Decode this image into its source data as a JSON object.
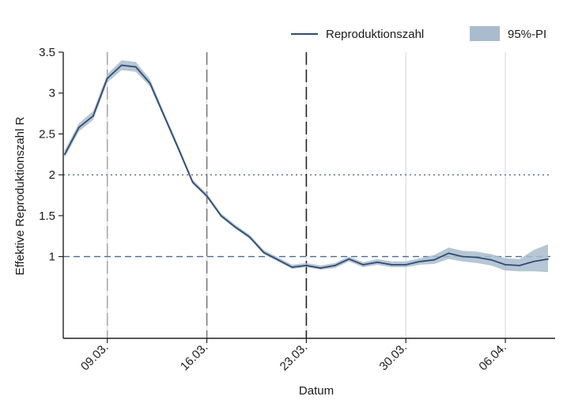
{
  "chart_data": {
    "type": "line",
    "xlabel": "Datum",
    "ylabel": "Effektive Reproduktionszahl R",
    "ylim": [
      0.0,
      3.5
    ],
    "y_ticks": [
      1,
      1.5,
      2,
      2.5,
      3,
      3.5
    ],
    "y_tick_labels": [
      "1",
      "1.5",
      "2",
      "2.5",
      "3",
      "3.5"
    ],
    "x_ticks": [
      "09.03.",
      "16.03.",
      "23.03.",
      "30.03.",
      "06.04."
    ],
    "x_tick_day_index": [
      9,
      16,
      23,
      30,
      37
    ],
    "x_start_day": 5.9,
    "x_end_day": 40.5,
    "series": [
      {
        "name": "Reproduktionszahl",
        "color": "#2f4b72",
        "band_color": "#a9bccd",
        "band_label": "95%-PI",
        "days": [
          6,
          7,
          8,
          9,
          10,
          11,
          12,
          13,
          14,
          15,
          16,
          17,
          18,
          19,
          20,
          21,
          22,
          23,
          24,
          25,
          26,
          27,
          28,
          29,
          30,
          31,
          32,
          33,
          34,
          35,
          36,
          37,
          38,
          39,
          40
        ],
        "values": [
          2.25,
          2.58,
          2.72,
          3.18,
          3.34,
          3.32,
          3.12,
          2.72,
          2.32,
          1.91,
          1.74,
          1.5,
          1.36,
          1.24,
          1.05,
          0.96,
          0.87,
          0.89,
          0.86,
          0.89,
          0.97,
          0.9,
          0.93,
          0.9,
          0.9,
          0.94,
          0.96,
          1.04,
          1.0,
          0.99,
          0.96,
          0.9,
          0.89,
          0.94,
          0.97
        ],
        "lower": [
          2.21,
          2.53,
          2.67,
          3.13,
          3.28,
          3.26,
          3.08,
          2.69,
          2.29,
          1.89,
          1.72,
          1.48,
          1.34,
          1.22,
          1.03,
          0.94,
          0.85,
          0.87,
          0.84,
          0.86,
          0.94,
          0.87,
          0.9,
          0.87,
          0.87,
          0.9,
          0.91,
          0.97,
          0.94,
          0.92,
          0.89,
          0.83,
          0.82,
          0.82,
          0.81
        ],
        "upper": [
          2.3,
          2.63,
          2.78,
          3.23,
          3.4,
          3.38,
          3.17,
          2.76,
          2.36,
          1.94,
          1.77,
          1.53,
          1.39,
          1.27,
          1.08,
          0.99,
          0.9,
          0.92,
          0.89,
          0.92,
          1.0,
          0.93,
          0.97,
          0.94,
          0.94,
          0.98,
          1.02,
          1.11,
          1.07,
          1.06,
          1.03,
          0.98,
          0.97,
          1.08,
          1.15
        ]
      }
    ],
    "reference_lines": [
      {
        "name": "R = 2",
        "value": 2,
        "style": "dotted",
        "color": "#4a6a94"
      },
      {
        "name": "R = 1",
        "value": 1,
        "style": "dashed",
        "color": "#4a6a94"
      }
    ],
    "event_lines": [
      {
        "day": 9,
        "style": "long-dash",
        "color": "#a8a8a8"
      },
      {
        "day": 16,
        "style": "long-dash",
        "color": "#7a7a7a"
      },
      {
        "day": 23,
        "style": "long-dash",
        "color": "#222222"
      }
    ],
    "grid_x": true,
    "grid_y": false,
    "legend_position": "top-right"
  }
}
